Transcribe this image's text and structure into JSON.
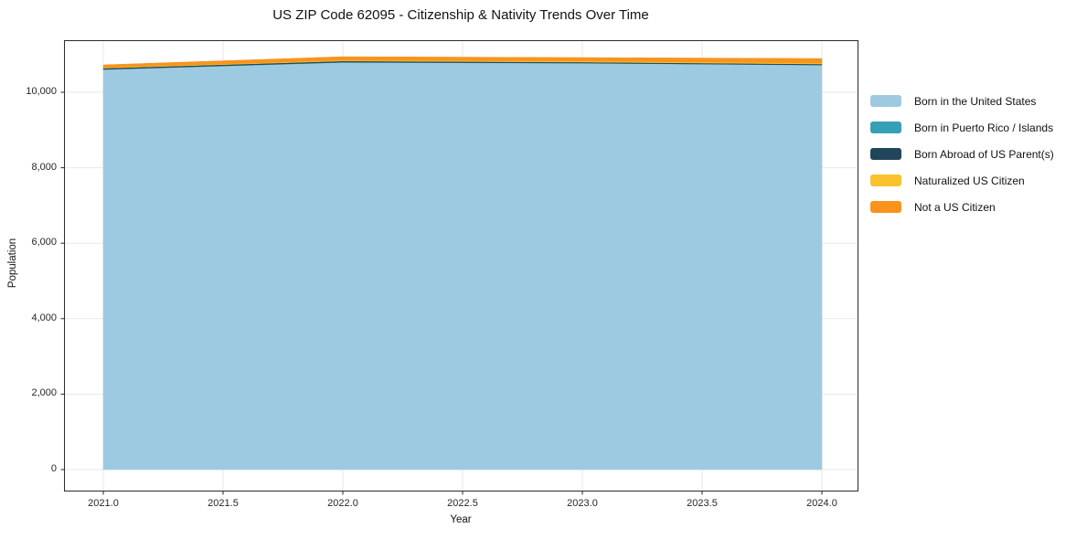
{
  "title": "US ZIP Code 62095 - Citizenship & Nativity Trends Over Time",
  "chart_data": {
    "type": "area",
    "stacked": true,
    "title": "US ZIP Code 62095 - Citizenship & Nativity Trends Over Time",
    "xlabel": "Year",
    "ylabel": "Population",
    "x": [
      2021,
      2022,
      2023,
      2024
    ],
    "series": [
      {
        "name": "Born in the United States",
        "color": "#9ECAE1",
        "values": [
          10600,
          10790,
          10770,
          10720
        ]
      },
      {
        "name": "Born in Puerto Rico / Islands",
        "color": "#36A0B7",
        "values": [
          8,
          8,
          5,
          5
        ]
      },
      {
        "name": "Born Abroad of US Parent(s)",
        "color": "#21455A",
        "values": [
          30,
          30,
          25,
          25
        ]
      },
      {
        "name": "Naturalized US Citizen",
        "color": "#FBC22D",
        "values": [
          18,
          20,
          25,
          25
        ]
      },
      {
        "name": "Not a US Citizen",
        "color": "#F8941E",
        "values": [
          70,
          95,
          95,
          120
        ]
      }
    ],
    "totals": [
      10726,
      10943,
      10920,
      10895
    ],
    "x_ticks": [
      "2021.0",
      "2021.5",
      "2022.0",
      "2022.5",
      "2023.0",
      "2023.5",
      "2024.0"
    ],
    "x_tick_values": [
      2021,
      2021.5,
      2022,
      2022.5,
      2023,
      2023.5,
      2024
    ],
    "y_ticks": [
      "0",
      "2,000",
      "4,000",
      "6,000",
      "8,000",
      "10,000"
    ],
    "y_tick_values": [
      0,
      2000,
      4000,
      6000,
      8000,
      10000
    ],
    "xlim": [
      2020.85,
      2024.15
    ],
    "ylim": [
      -560,
      11380
    ],
    "grid": true,
    "legend_position": "outside-right",
    "colors": {
      "grid": "#e7e7e7",
      "spine": "#2b2b2b",
      "tick": "#262626",
      "background": "#ffffff"
    }
  }
}
